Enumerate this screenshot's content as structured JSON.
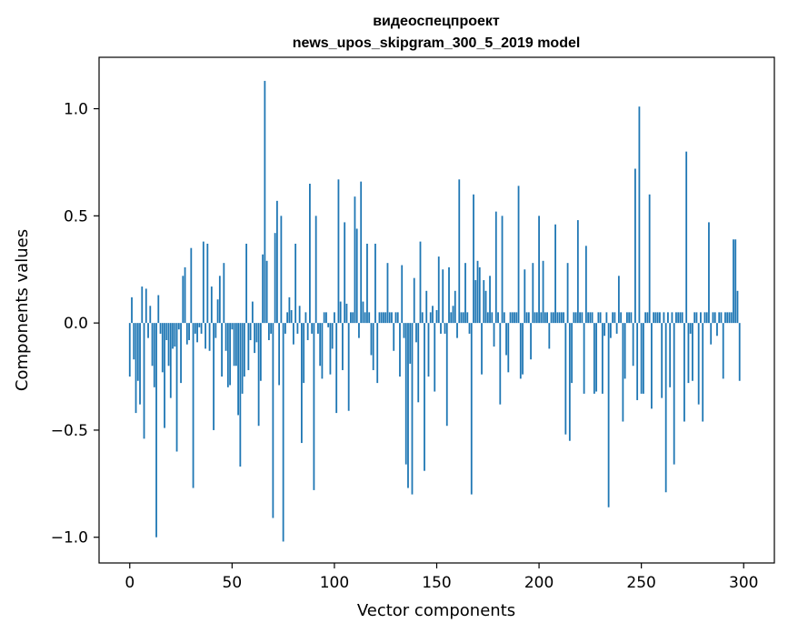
{
  "chart_data": {
    "type": "bar",
    "title_line1": "видеоспецпроект",
    "title_line2": "news_upos_skipgram_300_5_2019 model",
    "xlabel": "Vector components",
    "ylabel": "Components values",
    "xlim": [
      -15,
      315
    ],
    "ylim": [
      -1.12,
      1.24
    ],
    "xticks": [
      0,
      50,
      100,
      150,
      200,
      250,
      300
    ],
    "xtick_labels": [
      "0",
      "50",
      "100",
      "150",
      "200",
      "250",
      "300"
    ],
    "yticks": [
      -1.0,
      -0.5,
      0.0,
      0.5,
      1.0
    ],
    "ytick_labels": [
      "−1.0",
      "−0.5",
      "0.0",
      "0.5",
      "1.0"
    ],
    "color": "#1f77b4",
    "values": [
      -0.25,
      0.12,
      -0.17,
      -0.42,
      -0.27,
      -0.38,
      0.17,
      -0.54,
      0.16,
      -0.07,
      0.08,
      -0.2,
      -0.3,
      -1.0,
      0.13,
      -0.05,
      -0.23,
      -0.49,
      -0.08,
      -0.2,
      -0.35,
      -0.12,
      -0.11,
      -0.6,
      -0.03,
      -0.28,
      0.22,
      0.26,
      -0.1,
      -0.08,
      0.35,
      -0.77,
      -0.05,
      -0.09,
      -0.02,
      -0.05,
      0.38,
      -0.12,
      0.37,
      -0.13,
      0.17,
      -0.5,
      -0.07,
      0.11,
      0.22,
      -0.25,
      0.28,
      -0.13,
      -0.3,
      -0.29,
      -0.03,
      -0.2,
      -0.2,
      -0.43,
      -0.67,
      -0.33,
      -0.25,
      0.37,
      -0.22,
      -0.08,
      0.1,
      -0.14,
      -0.09,
      -0.48,
      -0.27,
      0.32,
      1.13,
      0.29,
      -0.08,
      -0.05,
      -0.91,
      0.42,
      0.57,
      -0.29,
      0.5,
      -1.02,
      -0.05,
      0.05,
      0.12,
      0.06,
      -0.1,
      0.37,
      -0.05,
      0.08,
      -0.56,
      -0.28,
      0.05,
      -0.08,
      0.65,
      -0.05,
      -0.78,
      0.5,
      -0.05,
      -0.2,
      -0.26,
      0.05,
      0.05,
      -0.02,
      -0.24,
      -0.12,
      0.05,
      -0.42,
      0.67,
      0.1,
      -0.22,
      0.47,
      0.09,
      -0.41,
      0.05,
      0.05,
      0.59,
      0.44,
      -0.07,
      0.66,
      0.1,
      0.05,
      0.37,
      0.05,
      -0.15,
      -0.22,
      0.37,
      -0.28,
      0.05,
      0.05,
      0.05,
      0.05,
      0.28,
      0.05,
      0.05,
      -0.13,
      0.05,
      0.05,
      -0.25,
      0.27,
      -0.07,
      -0.66,
      -0.77,
      -0.19,
      -0.8,
      0.21,
      -0.09,
      -0.37,
      0.38,
      0.05,
      -0.69,
      0.15,
      -0.25,
      0.05,
      0.08,
      -0.32,
      0.06,
      0.31,
      -0.05,
      0.25,
      -0.05,
      -0.48,
      0.26,
      0.05,
      0.08,
      0.15,
      -0.07,
      0.67,
      0.05,
      0.05,
      0.28,
      0.05,
      -0.05,
      -0.8,
      0.6,
      0.2,
      0.29,
      0.26,
      -0.24,
      0.2,
      0.15,
      0.05,
      0.22,
      0.05,
      -0.11,
      0.52,
      0.05,
      -0.38,
      0.5,
      0.05,
      -0.15,
      -0.23,
      0.05,
      0.05,
      0.05,
      0.05,
      0.64,
      -0.26,
      -0.24,
      0.25,
      0.05,
      0.05,
      -0.17,
      0.28,
      0.05,
      0.05,
      0.5,
      0.05,
      0.29,
      0.05,
      0.05,
      -0.12,
      0.05,
      0.05,
      0.46,
      0.05,
      0.05,
      0.05,
      0.05,
      -0.52,
      0.28,
      -0.55,
      -0.28,
      0.05,
      0.05,
      0.48,
      0.05,
      0.05,
      -0.33,
      0.36,
      0.05,
      0.05,
      0.05,
      -0.33,
      -0.32,
      0.05,
      0.05,
      -0.33,
      -0.06,
      0.05,
      -0.86,
      -0.07,
      0.05,
      0.05,
      -0.05,
      0.22,
      0.05,
      -0.46,
      -0.26,
      0.05,
      0.05,
      0.05,
      -0.2,
      0.72,
      -0.36,
      1.01,
      -0.33,
      -0.33,
      0.05,
      0.05,
      0.6,
      -0.4,
      0.05,
      0.05,
      0.05,
      0.05,
      -0.35,
      0.05,
      -0.79,
      0.05,
      -0.3,
      0.05,
      -0.66,
      0.05,
      0.05,
      0.05,
      0.05,
      -0.46,
      0.8,
      -0.28,
      -0.05,
      -0.27,
      0.05,
      0.05,
      -0.38,
      0.05,
      -0.46,
      0.05,
      0.05,
      0.47,
      -0.1,
      0.05,
      0.05,
      -0.06,
      0.05,
      0.05,
      -0.26,
      0.05,
      0.05,
      0.05,
      0.05,
      0.39,
      0.39,
      0.15,
      -0.27
    ]
  }
}
